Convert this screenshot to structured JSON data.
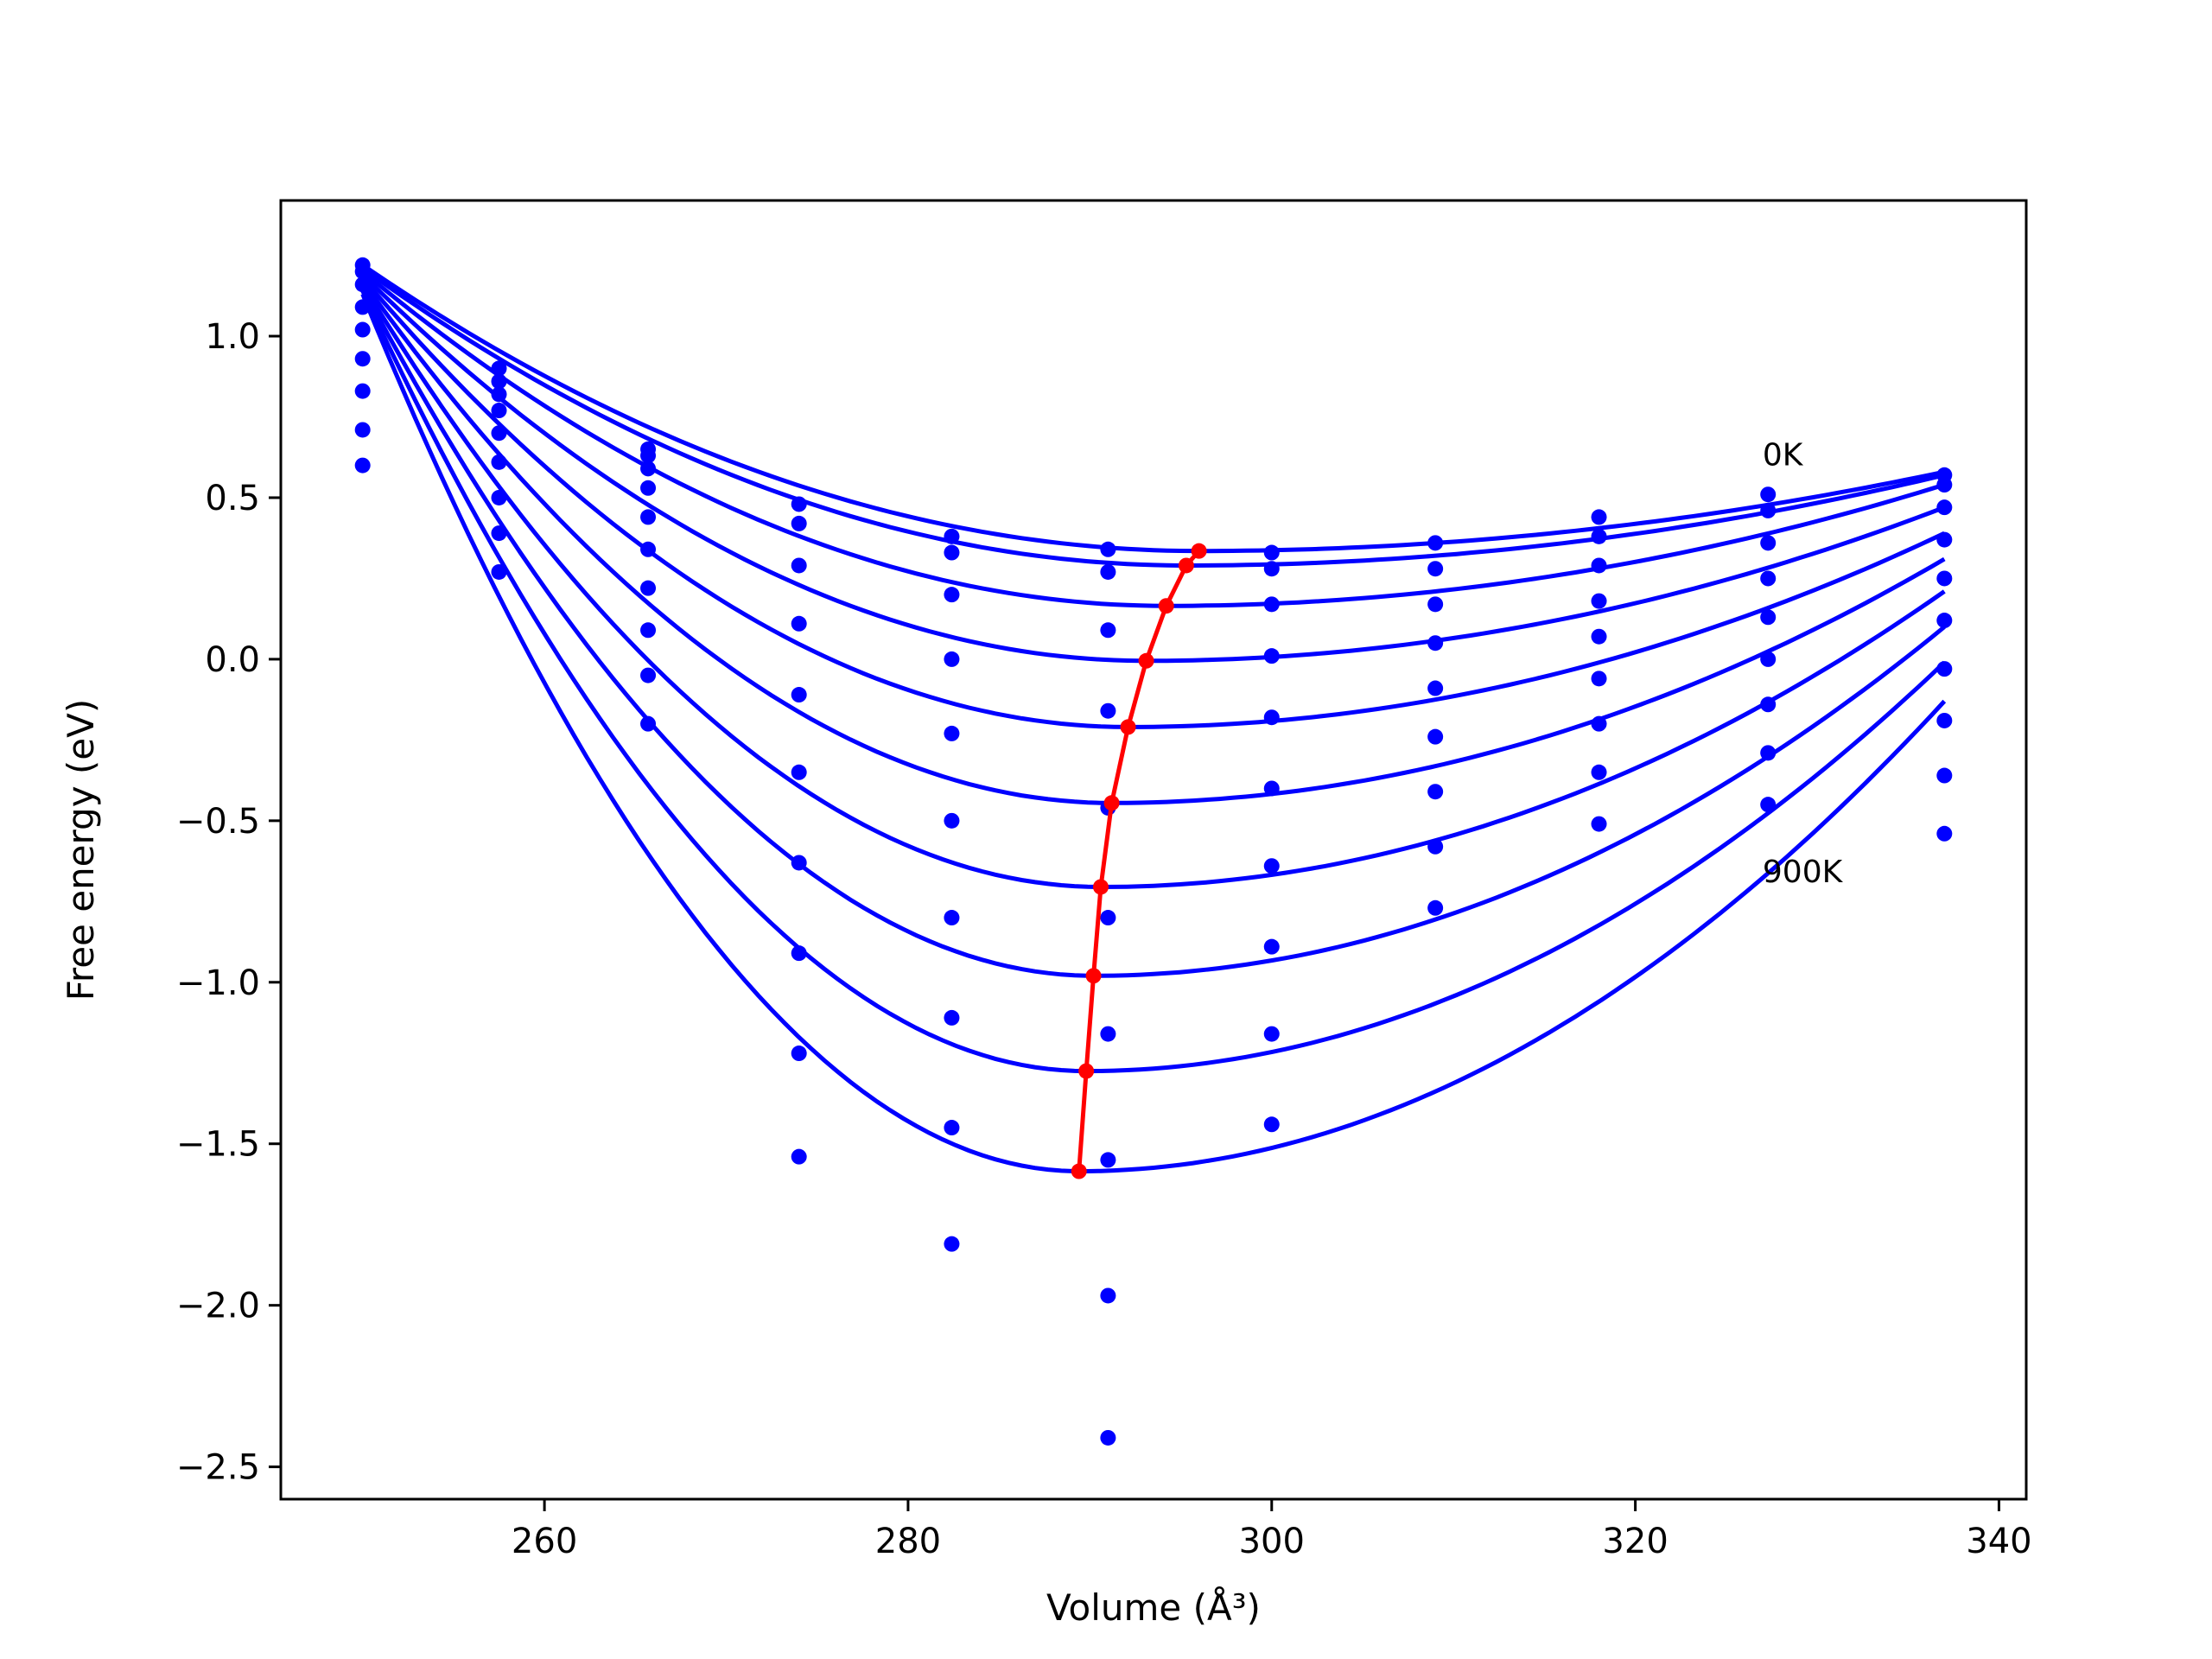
{
  "chart_data": {
    "type": "line",
    "title": "",
    "xlabel": "Volume (Å³)",
    "ylabel": "Free energy (eV)",
    "xlim": [
      245.5,
      341.5
    ],
    "ylim": [
      -2.6,
      1.42
    ],
    "xticks": [
      260,
      280,
      300,
      320,
      340
    ],
    "xtick_labels": [
      "260",
      "280",
      "300",
      "320",
      "340"
    ],
    "yticks": [
      1.0,
      0.5,
      0.0,
      -0.5,
      -1.0,
      -1.5,
      -2.0,
      -2.5
    ],
    "ytick_labels": [
      "1.0",
      "0.5",
      "0.0",
      "−0.5",
      "−1.0",
      "−1.5",
      "−2.0",
      "−2.5"
    ],
    "grid": false,
    "annotations": [
      {
        "text": "0K",
        "x": 327.0,
        "y": 0.6
      },
      {
        "text": "900K",
        "x": 327.0,
        "y": -0.69
      }
    ],
    "colors": {
      "curves": "#0000ff",
      "minima": "#ff0000",
      "axes": "#000000"
    },
    "fit_curves": {
      "x_range": [
        250.0,
        337.0
      ],
      "curves": [
        {
          "v0": 296.0,
          "f0": 0.335,
          "f_left": 1.22,
          "f_right": 0.58
        },
        {
          "v0": 295.3,
          "f0": 0.29,
          "f_left": 1.21,
          "f_right": 0.57
        },
        {
          "v0": 294.2,
          "f0": 0.165,
          "f_left": 1.2,
          "f_right": 0.54
        },
        {
          "v0": 293.1,
          "f0": -0.005,
          "f_left": 1.19,
          "f_right": 0.47
        },
        {
          "v0": 292.1,
          "f0": -0.21,
          "f_left": 1.18,
          "f_right": 0.39
        },
        {
          "v0": 291.2,
          "f0": -0.445,
          "f_left": 1.17,
          "f_right": 0.31
        },
        {
          "v0": 290.6,
          "f0": -0.705,
          "f_left": 1.16,
          "f_right": 0.21
        },
        {
          "v0": 290.2,
          "f0": -0.98,
          "f_left": 1.15,
          "f_right": 0.1
        },
        {
          "v0": 289.8,
          "f0": -1.275,
          "f_left": 1.14,
          "f_right": -0.01
        },
        {
          "v0": 289.4,
          "f0": -1.585,
          "f_left": 1.13,
          "f_right": -0.13
        }
      ]
    },
    "series": [
      {
        "kind": "minimum-path",
        "x": [
          289.4,
          289.8,
          290.2,
          290.6,
          291.2,
          292.1,
          293.1,
          294.2,
          295.3,
          296.0
        ],
        "y": [
          -1.585,
          -1.275,
          -0.98,
          -0.705,
          -0.445,
          -0.21,
          -0.005,
          0.165,
          0.29,
          0.335
        ]
      },
      {
        "kind": "raw-points",
        "points": [
          [
            250.0,
            1.22
          ],
          [
            250.0,
            1.2
          ],
          [
            250.0,
            1.16
          ],
          [
            250.0,
            1.09
          ],
          [
            250.0,
            1.02
          ],
          [
            250.0,
            0.93
          ],
          [
            250.0,
            0.83
          ],
          [
            250.0,
            0.71
          ],
          [
            250.0,
            0.6
          ],
          [
            257.5,
            0.9
          ],
          [
            257.5,
            0.86
          ],
          [
            257.5,
            0.82
          ],
          [
            257.5,
            0.77
          ],
          [
            257.5,
            0.7
          ],
          [
            257.5,
            0.61
          ],
          [
            257.5,
            0.5
          ],
          [
            257.5,
            0.39
          ],
          [
            257.5,
            0.27
          ],
          [
            265.7,
            0.65
          ],
          [
            265.7,
            0.63
          ],
          [
            265.7,
            0.59
          ],
          [
            265.7,
            0.53
          ],
          [
            265.7,
            0.44
          ],
          [
            265.7,
            0.34
          ],
          [
            265.7,
            0.22
          ],
          [
            265.7,
            0.09
          ],
          [
            265.7,
            -0.05
          ],
          [
            265.7,
            -0.2
          ],
          [
            274.0,
            0.48
          ],
          [
            274.0,
            0.42
          ],
          [
            274.0,
            0.29
          ],
          [
            274.0,
            0.11
          ],
          [
            274.0,
            -0.11
          ],
          [
            274.0,
            -0.35
          ],
          [
            274.0,
            -0.63
          ],
          [
            274.0,
            -0.91
          ],
          [
            274.0,
            -1.22
          ],
          [
            274.0,
            -1.54
          ],
          [
            282.4,
            0.38
          ],
          [
            282.4,
            0.33
          ],
          [
            282.4,
            0.2
          ],
          [
            282.4,
            0.0
          ],
          [
            282.4,
            -0.23
          ],
          [
            282.4,
            -0.5
          ],
          [
            282.4,
            -0.8
          ],
          [
            282.4,
            -1.11
          ],
          [
            282.4,
            -1.45
          ],
          [
            282.4,
            -1.81
          ],
          [
            291.0,
            0.34
          ],
          [
            291.0,
            0.27
          ],
          [
            291.0,
            0.09
          ],
          [
            291.0,
            -0.16
          ],
          [
            291.0,
            -0.46
          ],
          [
            291.0,
            -0.8
          ],
          [
            291.0,
            -1.16
          ],
          [
            291.0,
            -1.55
          ],
          [
            291.0,
            -1.97
          ],
          [
            291.0,
            -2.41
          ],
          [
            300.0,
            0.33
          ],
          [
            300.0,
            0.28
          ],
          [
            300.0,
            0.17
          ],
          [
            300.0,
            0.01
          ],
          [
            300.0,
            -0.18
          ],
          [
            300.0,
            -0.4
          ],
          [
            300.0,
            -0.64
          ],
          [
            300.0,
            -0.89
          ],
          [
            300.0,
            -1.16
          ],
          [
            300.0,
            -1.44
          ],
          [
            309.0,
            0.36
          ],
          [
            309.0,
            0.28
          ],
          [
            309.0,
            0.17
          ],
          [
            309.0,
            0.05
          ],
          [
            309.0,
            -0.09
          ],
          [
            309.0,
            -0.24
          ],
          [
            309.0,
            -0.41
          ],
          [
            309.0,
            -0.58
          ],
          [
            309.0,
            -0.77
          ],
          [
            318.0,
            0.44
          ],
          [
            318.0,
            0.38
          ],
          [
            318.0,
            0.29
          ],
          [
            318.0,
            0.18
          ],
          [
            318.0,
            0.07
          ],
          [
            318.0,
            -0.06
          ],
          [
            318.0,
            -0.2
          ],
          [
            318.0,
            -0.35
          ],
          [
            318.0,
            -0.51
          ],
          [
            327.3,
            0.51
          ],
          [
            327.3,
            0.46
          ],
          [
            327.3,
            0.36
          ],
          [
            327.3,
            0.25
          ],
          [
            327.3,
            0.13
          ],
          [
            327.3,
            0.0
          ],
          [
            327.3,
            -0.14
          ],
          [
            327.3,
            -0.29
          ],
          [
            327.3,
            -0.45
          ],
          [
            337.0,
            0.57
          ],
          [
            337.0,
            0.54
          ],
          [
            337.0,
            0.47
          ],
          [
            337.0,
            0.37
          ],
          [
            337.0,
            0.25
          ],
          [
            337.0,
            0.12
          ],
          [
            337.0,
            -0.03
          ],
          [
            337.0,
            -0.19
          ],
          [
            337.0,
            -0.36
          ],
          [
            337.0,
            -0.54
          ]
        ]
      }
    ]
  }
}
